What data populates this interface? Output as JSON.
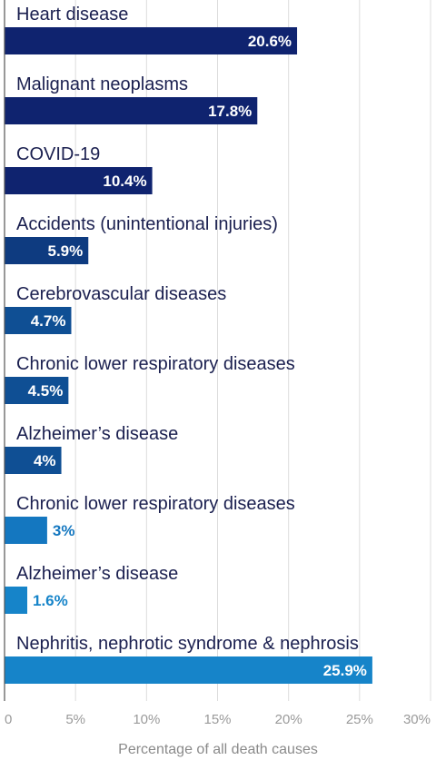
{
  "chart_data": {
    "type": "bar",
    "orientation": "horizontal",
    "categories": [
      "Heart disease",
      "Malignant neoplasms",
      "COVID-19",
      "Accidents (unintentional injuries)",
      "Cerebrovascular diseases",
      "Chronic lower respiratory diseases",
      "Alzheimer’s disease",
      "Chronic lower respiratory diseases",
      "Alzheimer’s disease",
      "Nephritis, nephrotic syndrome & nephrosis"
    ],
    "values": [
      20.6,
      17.8,
      10.4,
      5.9,
      4.7,
      4.5,
      4,
      3,
      1.6,
      25.9
    ],
    "value_labels": [
      "20.6%",
      "17.8%",
      "10.4%",
      "5.9%",
      "4.7%",
      "4.5%",
      "4%",
      "3%",
      "1.6%",
      "25.9%"
    ],
    "bar_colors": [
      "#0f236f",
      "#0f236f",
      "#0f236f",
      "#0e3b80",
      "#0f4f94",
      "#0f4f94",
      "#0f4f94",
      "#1477c0",
      "#1684c9",
      "#1684c9"
    ],
    "xlabel": "Percentage of all death causes",
    "ylabel": "",
    "xlim": [
      0,
      30
    ],
    "x_ticks": [
      0,
      5,
      10,
      15,
      20,
      25,
      30
    ],
    "x_tick_labels": [
      "0",
      "5%",
      "10%",
      "15%",
      "20%",
      "25%",
      "30%"
    ],
    "grid": true,
    "legend": "none"
  }
}
